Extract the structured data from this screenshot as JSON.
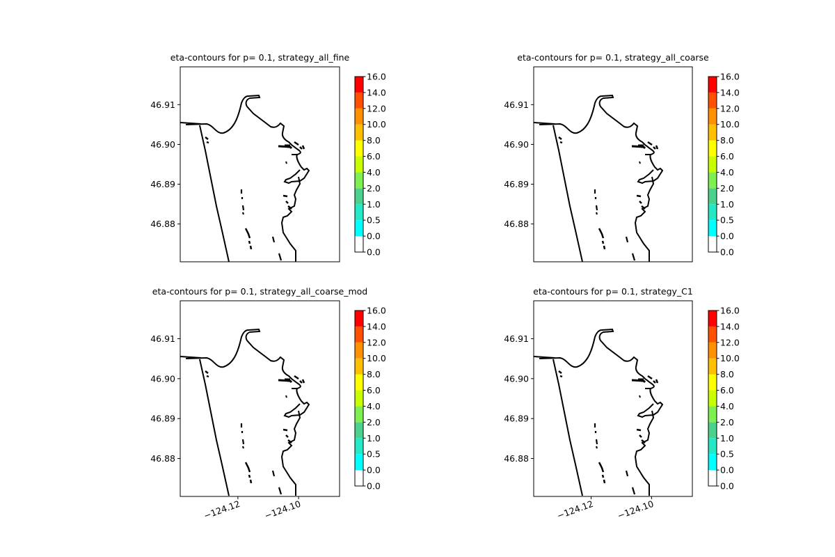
{
  "chart_data": [
    {
      "type": "contour",
      "title": "eta-contours for p= 0.1, strategy_all_fine",
      "xlabel": "",
      "ylabel": "",
      "yticks": [
        46.91,
        46.9,
        46.89,
        46.88
      ],
      "ytick_labels": [
        "46.91",
        "46.90",
        "46.89",
        "46.88"
      ],
      "xticks": [],
      "xtick_labels": [],
      "ylim": [
        46.8705,
        46.9195
      ],
      "xlim": [
        -124.139,
        -124.0865
      ],
      "colorbar": {
        "tick_labels": [
          "0.0",
          "0.0",
          "0.5",
          "1.0",
          "2.0",
          "4.0",
          "6.0",
          "8.0",
          "10.0",
          "12.0",
          "14.0",
          "16.0"
        ],
        "colors": [
          "#ffffff",
          "#00ffff",
          "#25e8c6",
          "#4ad28e",
          "#80f050",
          "#c8ff00",
          "#ffff00",
          "#ffc000",
          "#ff9000",
          "#ff5000",
          "#ff0000"
        ]
      }
    },
    {
      "type": "contour",
      "title": "eta-contours for p= 0.1, strategy_all_coarse",
      "xlabel": "",
      "ylabel": "",
      "yticks": [
        46.91,
        46.9,
        46.89,
        46.88
      ],
      "ytick_labels": [
        "46.91",
        "46.90",
        "46.89",
        "46.88"
      ],
      "xticks": [],
      "xtick_labels": [],
      "ylim": [
        46.8705,
        46.9195
      ],
      "xlim": [
        -124.139,
        -124.0865
      ],
      "colorbar": {
        "tick_labels": [
          "0.0",
          "0.0",
          "0.5",
          "1.0",
          "2.0",
          "4.0",
          "6.0",
          "8.0",
          "10.0",
          "12.0",
          "14.0",
          "16.0"
        ],
        "colors": [
          "#ffffff",
          "#00ffff",
          "#25e8c6",
          "#4ad28e",
          "#80f050",
          "#c8ff00",
          "#ffff00",
          "#ffc000",
          "#ff9000",
          "#ff5000",
          "#ff0000"
        ]
      }
    },
    {
      "type": "contour",
      "title": "eta-contours for p= 0.1, strategy_all_coarse_mod",
      "xlabel": "",
      "ylabel": "",
      "yticks": [
        46.91,
        46.9,
        46.89,
        46.88
      ],
      "ytick_labels": [
        "46.91",
        "46.90",
        "46.89",
        "46.88"
      ],
      "xticks": [
        -124.12,
        -124.1
      ],
      "xtick_labels": [
        "−124.12",
        "−124.10"
      ],
      "ylim": [
        46.8705,
        46.9195
      ],
      "xlim": [
        -124.139,
        -124.0865
      ],
      "colorbar": {
        "tick_labels": [
          "0.0",
          "0.0",
          "0.5",
          "1.0",
          "2.0",
          "4.0",
          "6.0",
          "8.0",
          "10.0",
          "12.0",
          "14.0",
          "16.0"
        ],
        "colors": [
          "#ffffff",
          "#00ffff",
          "#25e8c6",
          "#4ad28e",
          "#80f050",
          "#c8ff00",
          "#ffff00",
          "#ffc000",
          "#ff9000",
          "#ff5000",
          "#ff0000"
        ]
      }
    },
    {
      "type": "contour",
      "title": "eta-contours for p= 0.1, strategy_C1",
      "xlabel": "",
      "ylabel": "",
      "yticks": [
        46.91,
        46.9,
        46.89,
        46.88
      ],
      "ytick_labels": [
        "46.91",
        "46.90",
        "46.89",
        "46.88"
      ],
      "xticks": [
        -124.12,
        -124.1
      ],
      "xtick_labels": [
        "−124.12",
        "−124.10"
      ],
      "ylim": [
        46.8705,
        46.9195
      ],
      "xlim": [
        -124.139,
        -124.0865
      ],
      "colorbar": {
        "tick_labels": [
          "0.0",
          "0.0",
          "0.5",
          "1.0",
          "2.0",
          "4.0",
          "6.0",
          "8.0",
          "10.0",
          "12.0",
          "14.0",
          "16.0"
        ],
        "colors": [
          "#ffffff",
          "#00ffff",
          "#25e8c6",
          "#4ad28e",
          "#80f050",
          "#c8ff00",
          "#ffff00",
          "#ffc000",
          "#ff9000",
          "#ff5000",
          "#ff0000"
        ]
      }
    }
  ]
}
